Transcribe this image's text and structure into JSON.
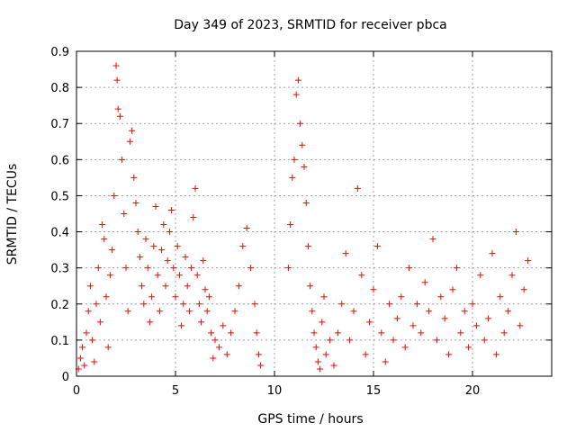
{
  "chart_data": {
    "type": "scatter",
    "title": "Day 349 of 2023, SRMTID for receiver pbca",
    "xlabel": "GPS time / hours",
    "ylabel": "SRMTID / TECUs",
    "xlim": [
      0,
      24
    ],
    "ylim": [
      0,
      0.9
    ],
    "xticks": [
      0,
      5,
      10,
      15,
      20
    ],
    "yticks": [
      0,
      0.1,
      0.2,
      0.3,
      0.4,
      0.5,
      0.6,
      0.7,
      0.8,
      0.9
    ],
    "xtick_labels": [
      "0",
      "5",
      "10",
      "15",
      "20"
    ],
    "ytick_labels": [
      "0",
      "0.1",
      "0.2",
      "0.3",
      "0.4",
      "0.5",
      "0.6",
      "0.7",
      "0.8",
      "0.9"
    ],
    "grid": true,
    "marker": "+",
    "marker_color": "#ff0000",
    "series": [
      {
        "name": "SRMTID",
        "points": [
          [
            0.1,
            0.02
          ],
          [
            0.2,
            0.05
          ],
          [
            0.3,
            0.08
          ],
          [
            0.4,
            0.03
          ],
          [
            0.5,
            0.12
          ],
          [
            0.6,
            0.18
          ],
          [
            0.7,
            0.25
          ],
          [
            0.8,
            0.1
          ],
          [
            0.9,
            0.04
          ],
          [
            1.0,
            0.2
          ],
          [
            1.1,
            0.3
          ],
          [
            1.2,
            0.15
          ],
          [
            1.3,
            0.42
          ],
          [
            1.4,
            0.38
          ],
          [
            1.5,
            0.22
          ],
          [
            1.6,
            0.08
          ],
          [
            1.7,
            0.28
          ],
          [
            1.8,
            0.35
          ],
          [
            1.9,
            0.5
          ],
          [
            2.0,
            0.86
          ],
          [
            2.05,
            0.82
          ],
          [
            2.1,
            0.74
          ],
          [
            2.2,
            0.72
          ],
          [
            2.3,
            0.6
          ],
          [
            2.4,
            0.45
          ],
          [
            2.5,
            0.3
          ],
          [
            2.6,
            0.18
          ],
          [
            2.7,
            0.65
          ],
          [
            2.8,
            0.68
          ],
          [
            2.9,
            0.55
          ],
          [
            3.0,
            0.48
          ],
          [
            3.1,
            0.4
          ],
          [
            3.2,
            0.33
          ],
          [
            3.3,
            0.25
          ],
          [
            3.4,
            0.2
          ],
          [
            3.5,
            0.38
          ],
          [
            3.6,
            0.3
          ],
          [
            3.7,
            0.15
          ],
          [
            3.8,
            0.22
          ],
          [
            3.9,
            0.36
          ],
          [
            4.0,
            0.47
          ],
          [
            4.1,
            0.28
          ],
          [
            4.2,
            0.18
          ],
          [
            4.3,
            0.35
          ],
          [
            4.4,
            0.42
          ],
          [
            4.5,
            0.25
          ],
          [
            4.6,
            0.32
          ],
          [
            4.7,
            0.4
          ],
          [
            4.8,
            0.46
          ],
          [
            4.9,
            0.3
          ],
          [
            5.0,
            0.22
          ],
          [
            5.1,
            0.36
          ],
          [
            5.2,
            0.28
          ],
          [
            5.3,
            0.14
          ],
          [
            5.4,
            0.2
          ],
          [
            5.5,
            0.33
          ],
          [
            5.6,
            0.25
          ],
          [
            5.7,
            0.18
          ],
          [
            5.8,
            0.3
          ],
          [
            5.9,
            0.44
          ],
          [
            6.0,
            0.52
          ],
          [
            6.1,
            0.28
          ],
          [
            6.2,
            0.2
          ],
          [
            6.3,
            0.15
          ],
          [
            6.4,
            0.32
          ],
          [
            6.5,
            0.24
          ],
          [
            6.6,
            0.18
          ],
          [
            6.7,
            0.22
          ],
          [
            6.8,
            0.12
          ],
          [
            6.9,
            0.05
          ],
          [
            7.0,
            0.1
          ],
          [
            7.2,
            0.08
          ],
          [
            7.4,
            0.14
          ],
          [
            7.6,
            0.06
          ],
          [
            7.8,
            0.12
          ],
          [
            8.0,
            0.18
          ],
          [
            8.2,
            0.25
          ],
          [
            8.4,
            0.36
          ],
          [
            8.6,
            0.41
          ],
          [
            8.8,
            0.3
          ],
          [
            9.0,
            0.2
          ],
          [
            9.1,
            0.12
          ],
          [
            9.2,
            0.06
          ],
          [
            9.3,
            0.03
          ],
          [
            10.7,
            0.3
          ],
          [
            10.8,
            0.42
          ],
          [
            10.9,
            0.55
          ],
          [
            11.0,
            0.6
          ],
          [
            11.1,
            0.78
          ],
          [
            11.2,
            0.82
          ],
          [
            11.3,
            0.7
          ],
          [
            11.4,
            0.64
          ],
          [
            11.5,
            0.58
          ],
          [
            11.6,
            0.48
          ],
          [
            11.7,
            0.36
          ],
          [
            11.8,
            0.25
          ],
          [
            11.9,
            0.18
          ],
          [
            12.0,
            0.12
          ],
          [
            12.1,
            0.08
          ],
          [
            12.2,
            0.04
          ],
          [
            12.3,
            0.02
          ],
          [
            12.4,
            0.15
          ],
          [
            12.5,
            0.22
          ],
          [
            12.6,
            0.06
          ],
          [
            12.8,
            0.1
          ],
          [
            13.0,
            0.03
          ],
          [
            13.2,
            0.12
          ],
          [
            13.4,
            0.2
          ],
          [
            13.6,
            0.34
          ],
          [
            13.8,
            0.1
          ],
          [
            14.0,
            0.18
          ],
          [
            14.2,
            0.52
          ],
          [
            14.4,
            0.28
          ],
          [
            14.6,
            0.06
          ],
          [
            14.8,
            0.15
          ],
          [
            15.0,
            0.24
          ],
          [
            15.2,
            0.36
          ],
          [
            15.4,
            0.12
          ],
          [
            15.6,
            0.04
          ],
          [
            15.8,
            0.2
          ],
          [
            16.0,
            0.1
          ],
          [
            16.2,
            0.16
          ],
          [
            16.4,
            0.22
          ],
          [
            16.6,
            0.08
          ],
          [
            16.8,
            0.3
          ],
          [
            17.0,
            0.14
          ],
          [
            17.2,
            0.2
          ],
          [
            17.4,
            0.12
          ],
          [
            17.6,
            0.26
          ],
          [
            17.8,
            0.18
          ],
          [
            18.0,
            0.38
          ],
          [
            18.2,
            0.1
          ],
          [
            18.4,
            0.22
          ],
          [
            18.6,
            0.16
          ],
          [
            18.8,
            0.06
          ],
          [
            19.0,
            0.24
          ],
          [
            19.2,
            0.3
          ],
          [
            19.4,
            0.12
          ],
          [
            19.6,
            0.18
          ],
          [
            19.8,
            0.08
          ],
          [
            20.0,
            0.2
          ],
          [
            20.2,
            0.14
          ],
          [
            20.4,
            0.28
          ],
          [
            20.6,
            0.1
          ],
          [
            20.8,
            0.16
          ],
          [
            21.0,
            0.34
          ],
          [
            21.2,
            0.06
          ],
          [
            21.4,
            0.22
          ],
          [
            21.6,
            0.12
          ],
          [
            21.8,
            0.18
          ],
          [
            22.0,
            0.28
          ],
          [
            22.2,
            0.4
          ],
          [
            22.4,
            0.14
          ],
          [
            22.6,
            0.24
          ],
          [
            22.8,
            0.32
          ]
        ]
      }
    ]
  }
}
